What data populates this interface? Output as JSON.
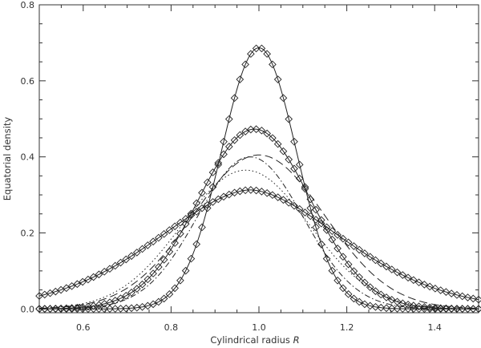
{
  "chart_data": {
    "type": "line",
    "xlabel_text": "Cylindrical radius ",
    "xlabel_var": "R",
    "ylabel": "Equatorial density",
    "xlim": [
      0.5,
      1.5
    ],
    "ylim": [
      -0.01,
      0.8
    ],
    "xticks": [
      "0.6",
      "0.8",
      "1.0",
      "1.2",
      "1.4"
    ],
    "yticks": [
      "0.0",
      "0.2",
      "0.4",
      "0.6",
      "0.8"
    ],
    "grid": false,
    "series": [
      {
        "style": "solid",
        "markers": "diamond",
        "center": 1.0,
        "peak": 0.687,
        "sigma": 0.085,
        "gamma": 2.0
      },
      {
        "style": "solid",
        "markers": "diamond",
        "center": 0.99,
        "peak": 0.473,
        "sigma": 0.128,
        "gamma": 2.0
      },
      {
        "style": "solid",
        "markers": "diamond",
        "center": 0.98,
        "peak": 0.313,
        "sigma": 0.205,
        "gamma": 1.75
      },
      {
        "style": "dashed",
        "markers": "none",
        "center": 1.0,
        "peak": 0.405,
        "sigma": 0.15,
        "gamma": 2.0
      },
      {
        "style": "dotted",
        "markers": "none",
        "center": 0.97,
        "peak": 0.365,
        "sigma": 0.145,
        "gamma": 2.0
      },
      {
        "style": "dashdot",
        "markers": "none",
        "center": 0.98,
        "peak": 0.4,
        "sigma": 0.12,
        "gamma": 2.0
      }
    ]
  }
}
